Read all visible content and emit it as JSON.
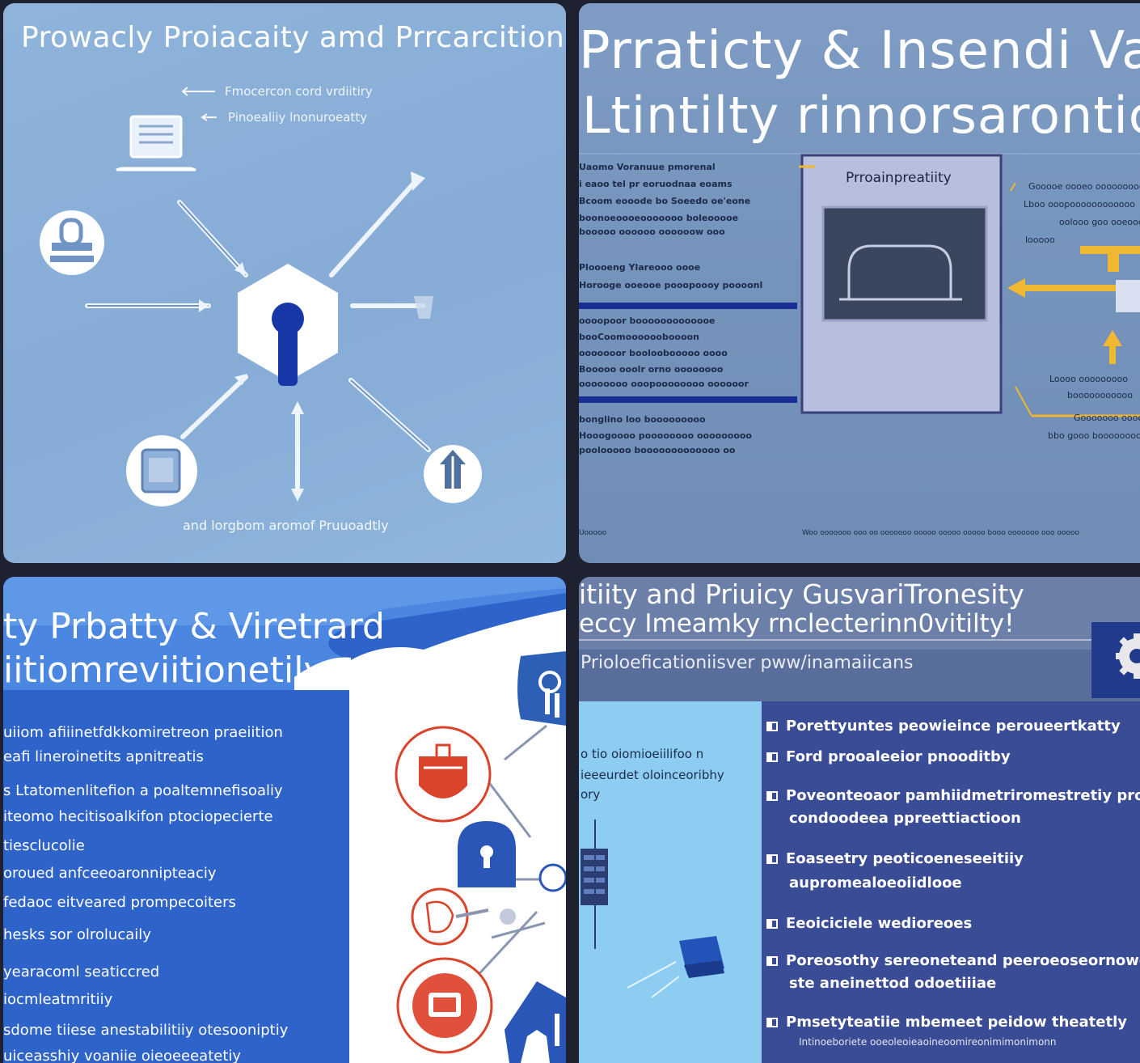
{
  "tile1": {
    "title": "Prowacly Proiacaity amd Prrcarcition",
    "note1": "Fmocercon cord vrdiitiry",
    "note2": "Pinoealiiy lnonuroeatty",
    "footer": "and lorgbom aromof Pruuoadtly",
    "icons": [
      "laptop-icon",
      "lock-stamp-icon",
      "keyhole-hexagon-icon",
      "document-icon",
      "upload-icon"
    ]
  },
  "tile2": {
    "title_line1": "Prraticty & Insendi Vanr",
    "title_line2": "Ltintilty rinnorsarontic",
    "box_label": "Prroainpreatiity",
    "left_lines": [
      "Uaomo Voranuue pmorenal",
      "i eaoo tel pr eoruodnaa eoams",
      "Bcoom eooode bo Soeedo oe'eone",
      "boonoeoooeooooooo boleooooe",
      "booooo oooooo oooooow ooo",
      "Ploooeng Ylareooo oooe",
      "Horooge ooeooe pooopoooy poooonl",
      "oooopoor booooooooooooe",
      "booCoomooooooboooon",
      "ooooooor booloobooooo oooo",
      "Booooo ooolr orno oooooooo",
      "oooooooo ooopoooooooo oooooor",
      "bonglino loo booooooooo",
      "Hooogoooo poooooooo ooooooooo",
      "poolooooo booooooooooooo oo"
    ],
    "right_lines": [
      "Gooooe oooeo ooooooooe",
      "Lboo ooopoooooooooooo",
      "oolooo goo ooeooooo",
      "looooo",
      "Loooo ooooooooo",
      "booooooooooo",
      "Gooooooo oooo",
      "bbo gooo booooooooo"
    ],
    "footer_left": "Uooooo",
    "footer_right": "Woo ooooooo ooo oo ooooooo ooooo ooooo ooooo booo ooooooo ooo ooooo"
  },
  "tile3": {
    "title_line1": "ty Prbatty & Viretrard",
    "title_line2": "iitiomreviitionetily",
    "lines": [
      "uiiom afiiinetfdkkomiretreon praeiition",
      "eafi lineroinetits apnitreatis",
      "s Ltatomenlitefion a poaltemnefisoaliy",
      "iteomo hecitisoalkifon ptociopecierte",
      "tiesclucolie",
      "oroued anfceeoaronnipteaciy",
      "fedaoc eitveared prompecoiters",
      "hesks sor olrolucaily",
      "yearacoml seaticcred",
      "iocmleatmritiiy",
      "sdome tiiese anestabilitiiy otesooniptiy",
      "uiceasshiy voaniie oieoeeeatetiy"
    ],
    "icons": [
      "shield-keyhole-icon",
      "medical-bag-icon",
      "padlock-icon",
      "face-icon",
      "camera-icon",
      "hand-icon"
    ]
  },
  "tile4": {
    "title_line1": "itiity and Priuicy GusvariTronesity",
    "title_line2": "eccy Imeamky rnclecterinn0vitilty!",
    "subtitle": "Prioloeficationiisver pww/inamaiicans",
    "left_lines": [
      "o tio oiomioeiilifoo n",
      "ieeeurdet oloinceoribhy",
      "ory"
    ],
    "bullets": [
      {
        "text": "Porettyuntes peowieince peroueertkatty",
        "cont": ""
      },
      {
        "text": "Ford prooaleeior pnooditby",
        "cont": ""
      },
      {
        "text": "Poveonteoaor pamhiidmetriromestretiy proutote",
        "cont": "condoodeea ppreettiactioon"
      },
      {
        "text": "Eoaseetry peoticoeneseeitiiy",
        "cont": "aupromealoeoiidlooe"
      },
      {
        "text": "Eeoiciciele wedioreoes",
        "cont": ""
      },
      {
        "text": "Poreosothy sereoneteand peeroeoseornowe",
        "cont": "ste aneinettod odoetiiiae"
      },
      {
        "text": "Pmsetyteatiie mbemeet peidow theatetly",
        "cont": ""
      }
    ],
    "tiny": "Intinoeboriete ooeoleoieaoineoomireonimimonimonn"
  },
  "colors": {
    "tile1_bg": "#8fb4da",
    "tile2_bg": "#7695bd",
    "tile3_bg": "#2e63c9",
    "tile4_bg": "#3b4f98",
    "accent_navy": "#1838a8",
    "accent_yellow": "#f0b830",
    "accent_red": "#d9442b"
  }
}
